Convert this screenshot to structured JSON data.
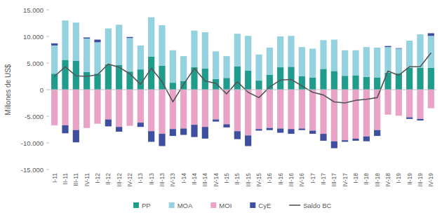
{
  "chart_data": {
    "type": "bar",
    "stacked": true,
    "grid": false,
    "legend": "bottom",
    "y_label": "Millones de US$",
    "categories": [
      "I-11",
      "II-11",
      "III-11",
      "IV-11",
      "I-12",
      "II-12",
      "III-12",
      "IV-12",
      "I-13",
      "II-13",
      "III-13",
      "IV-13",
      "I-14",
      "II-14",
      "III-14",
      "IV-14",
      "I-15",
      "II-15",
      "III-15",
      "IV-15",
      "I-16",
      "II-16",
      "III-16",
      "IV-16",
      "I-17",
      "II-17",
      "III-17",
      "IV-17",
      "I-18",
      "II-18",
      "III-18",
      "IV-18",
      "I-19",
      "II-19",
      "III-19",
      "IV-19"
    ],
    "ylim": [
      -15000,
      15000
    ],
    "yticks": [
      {
        "value": -15000,
        "label": "-15.000"
      },
      {
        "value": -10000,
        "label": "-10.000"
      },
      {
        "value": -5000,
        "label": "-5.000"
      },
      0,
      {
        "value": 5000,
        "label": "5.000"
      },
      {
        "value": 10000,
        "label": "10.000"
      },
      {
        "value": 15000,
        "label": "15.000"
      }
    ],
    "series": [
      {
        "name": "PP",
        "type": "bar",
        "color": "#1f9c8c",
        "values": [
          3000,
          5600,
          5400,
          3300,
          3000,
          4800,
          4600,
          3400,
          3800,
          6200,
          4500,
          1300,
          1600,
          4200,
          4000,
          2000,
          2200,
          4400,
          3600,
          1700,
          2800,
          4200,
          4300,
          2500,
          2300,
          3900,
          3500,
          2600,
          2700,
          2400,
          2300,
          3200,
          3100,
          4100,
          4100,
          4100
        ]
      },
      {
        "name": "MOA",
        "type": "bar",
        "color": "#93d2de",
        "values": [
          5300,
          7400,
          7200,
          6300,
          5900,
          6700,
          7600,
          6300,
          4500,
          7400,
          7600,
          6100,
          4700,
          6900,
          6800,
          5200,
          4100,
          6100,
          6500,
          4900,
          5100,
          5800,
          5800,
          5500,
          5400,
          5400,
          5900,
          4800,
          4700,
          5600,
          5600,
          4800,
          4600,
          5100,
          6300,
          6000
        ]
      },
      {
        "name": "MOI",
        "type": "bar",
        "color": "#e8a3c7",
        "values": [
          -6700,
          -6700,
          -7600,
          -7200,
          -6400,
          -5600,
          -7000,
          -6800,
          -6200,
          -7800,
          -8300,
          -7400,
          -7300,
          -6600,
          -7000,
          -5600,
          -6500,
          -7800,
          -8600,
          -7400,
          -7200,
          -7300,
          -7400,
          -7300,
          -7700,
          -8300,
          -9700,
          -9500,
          -9200,
          -8800,
          -7600,
          -4700,
          -4900,
          -5200,
          -5500,
          -3500
        ]
      },
      {
        "name": "CyE",
        "type": "bar",
        "color": "#3e4fa0",
        "values": [
          400,
          -1500,
          -2300,
          200,
          500,
          -1300,
          -900,
          200,
          -800,
          -2000,
          -2300,
          -1300,
          -1200,
          -2300,
          -2200,
          -400,
          -600,
          -1500,
          -2000,
          -300,
          -400,
          -800,
          -900,
          -300,
          -600,
          -1300,
          -1300,
          -300,
          -400,
          -900,
          -1100,
          200,
          100,
          -300,
          -300,
          500
        ]
      },
      {
        "name": "Saldo BC",
        "type": "line",
        "color": "#555555",
        "values": [
          2500,
          4300,
          2600,
          2500,
          2800,
          4800,
          4200,
          3000,
          1000,
          4000,
          1500,
          -2300,
          1000,
          4000,
          1600,
          1200,
          -800,
          1500,
          -500,
          -1500,
          500,
          1800,
          1900,
          700,
          -500,
          -1000,
          -2300,
          -2500,
          -2000,
          -1800,
          -1500,
          3500,
          2700,
          4300,
          4300,
          6900
        ]
      }
    ]
  }
}
